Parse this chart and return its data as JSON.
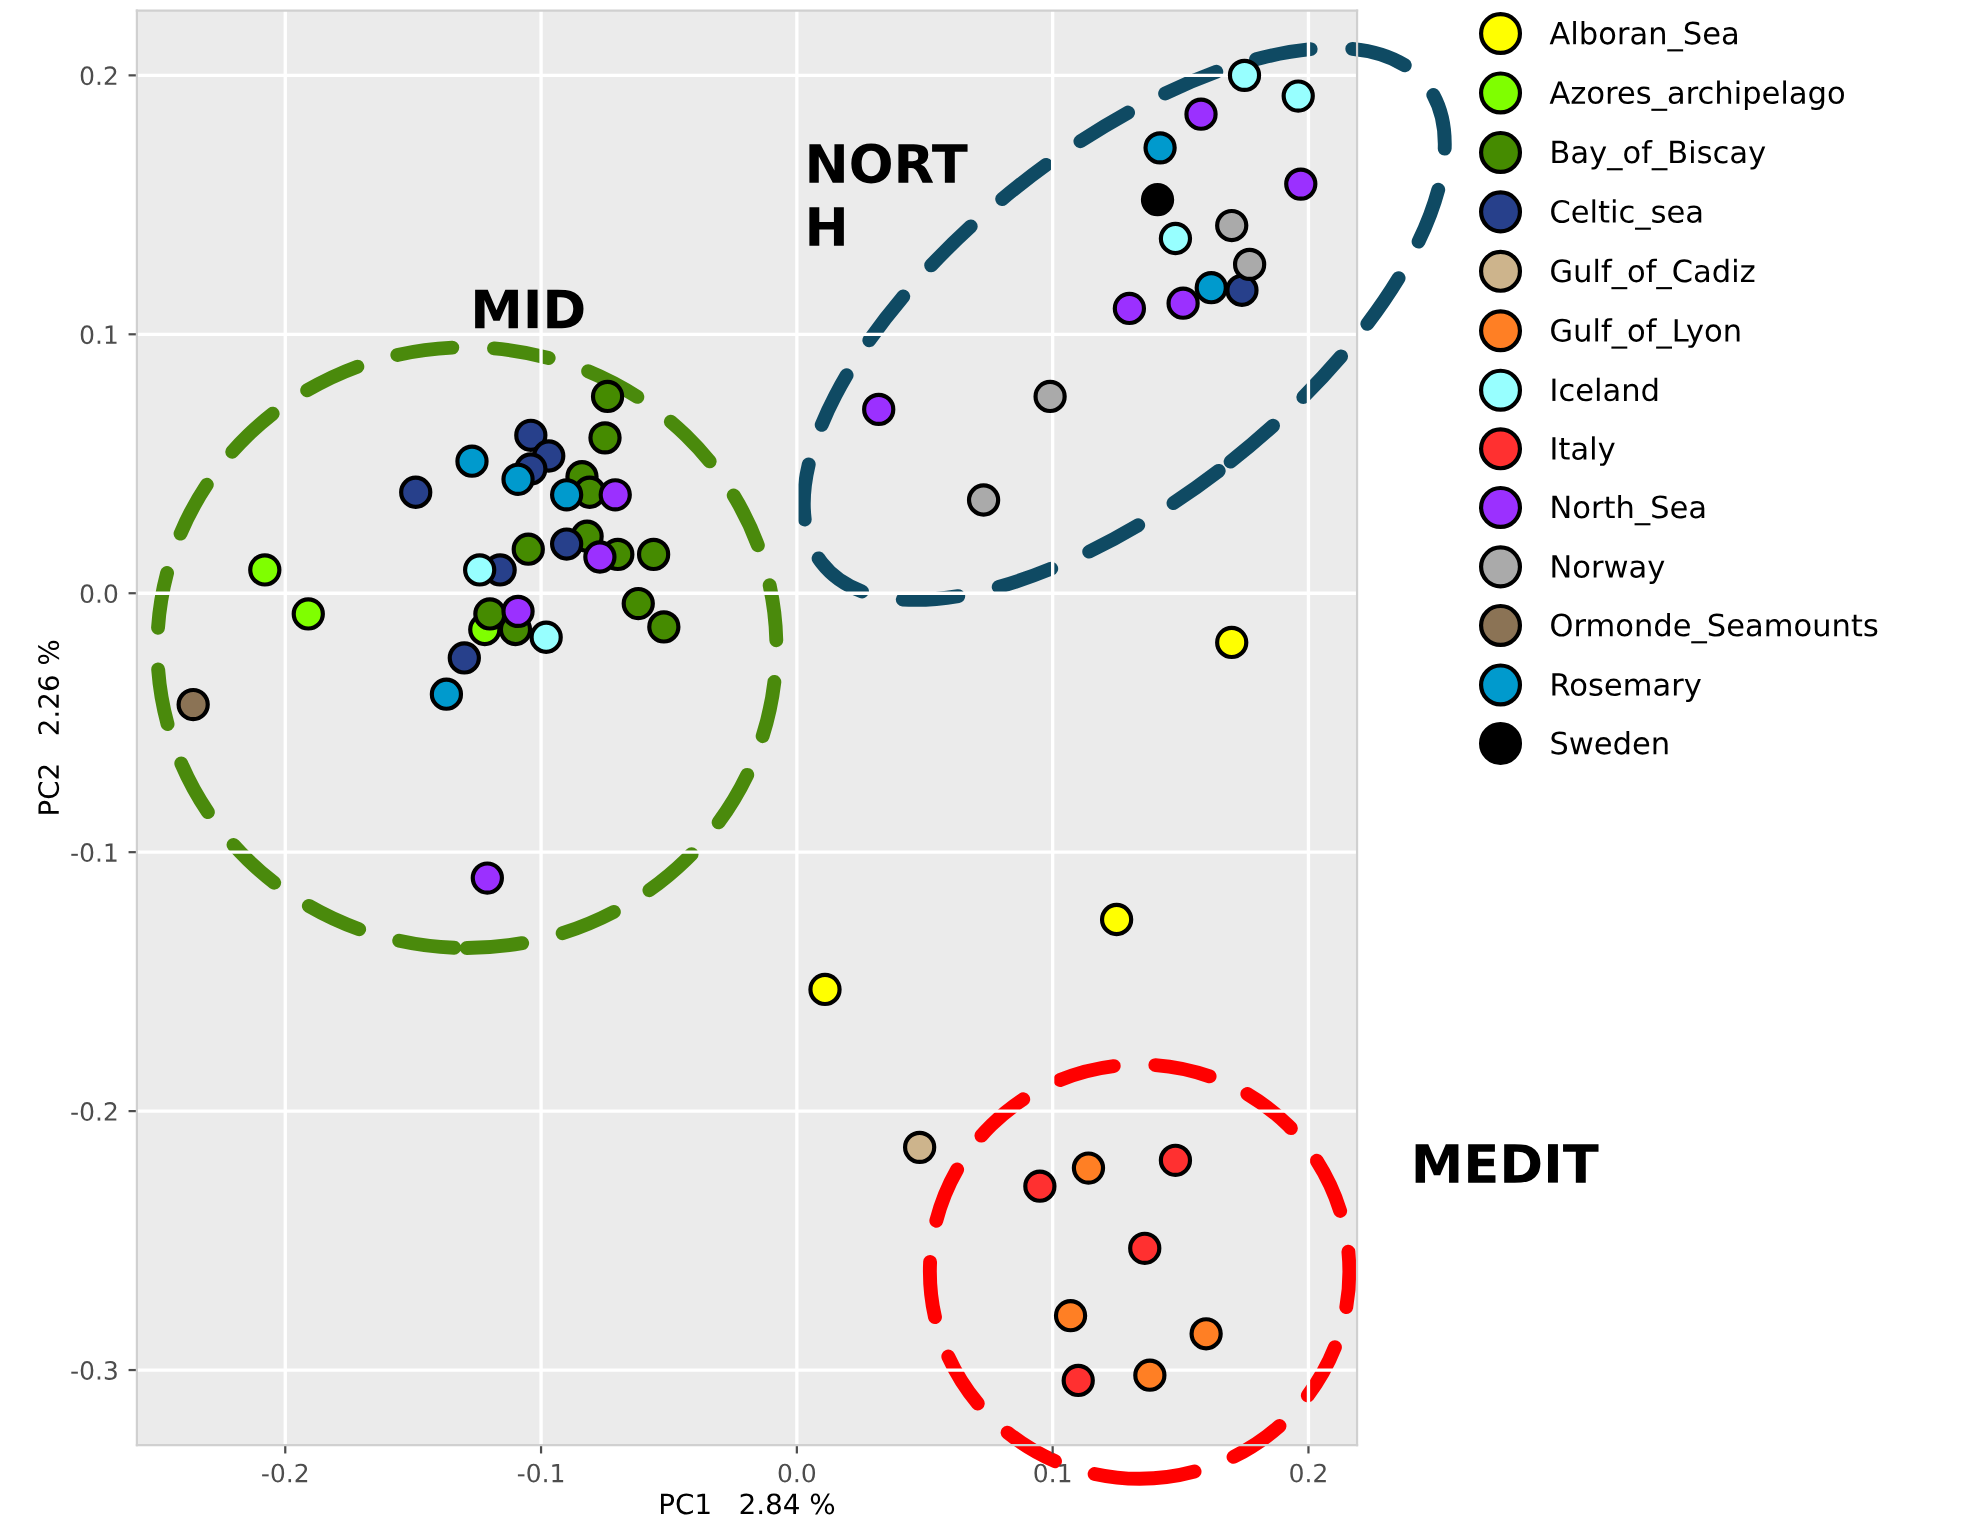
{
  "chart_data": {
    "type": "scatter",
    "xlabel": "PC1   2.84 %",
    "ylabel": "PC2   2.26 %",
    "xlim": [
      -0.258,
      0.219
    ],
    "ylim": [
      -0.329,
      0.225
    ],
    "xticks": [
      {
        "value": -0.2,
        "label": "-0.2"
      },
      {
        "value": -0.1,
        "label": "-0.1"
      },
      {
        "value": 0.0,
        "label": "0.0"
      },
      {
        "value": 0.1,
        "label": "0.1"
      },
      {
        "value": 0.2,
        "label": "0.2"
      }
    ],
    "yticks": [
      {
        "value": -0.3,
        "label": "-0.3"
      },
      {
        "value": -0.2,
        "label": "-0.2"
      },
      {
        "value": -0.1,
        "label": "-0.1"
      },
      {
        "value": 0.0,
        "label": "0.0"
      },
      {
        "value": 0.1,
        "label": "0.1"
      },
      {
        "value": 0.2,
        "label": "0.2"
      }
    ],
    "grid": true,
    "legend": "right",
    "marker": "circle",
    "annotations": [
      "MID",
      "NORT\nH",
      "MEDIT"
    ],
    "series": [
      {
        "name": "Alboran_Sea",
        "color": "#ffff00",
        "x": [
          0.17,
          0.011,
          0.125
        ],
        "values": [
          -0.019,
          -0.153,
          -0.126
        ]
      },
      {
        "name": "Azores_archipelago",
        "color": "#7fff00",
        "x": [
          -0.208,
          -0.191,
          -0.122
        ],
        "values": [
          0.009,
          -0.008,
          -0.014
        ]
      },
      {
        "name": "Bay_of_Biscay",
        "color": "#458b00",
        "x": [
          -0.074,
          -0.075,
          -0.084,
          -0.081,
          -0.082,
          -0.105,
          -0.07,
          -0.056,
          -0.12,
          -0.11,
          -0.062,
          -0.052
        ],
        "values": [
          0.076,
          0.06,
          0.045,
          0.039,
          0.022,
          0.017,
          0.015,
          0.015,
          -0.008,
          -0.014,
          -0.004,
          -0.013
        ]
      },
      {
        "name": "Celtic_sea",
        "color": "#27408b",
        "x": [
          -0.104,
          -0.097,
          -0.104,
          -0.149,
          -0.09,
          -0.116,
          -0.13,
          0.174
        ],
        "values": [
          0.061,
          0.053,
          0.048,
          0.039,
          0.019,
          0.009,
          -0.025,
          0.117
        ]
      },
      {
        "name": "Gulf_of_Cadiz",
        "color": "#cdb48c",
        "x": [
          0.048
        ],
        "values": [
          -0.214
        ]
      },
      {
        "name": "Gulf_of_Lyon",
        "color": "#ff7f24",
        "x": [
          0.114,
          0.107,
          0.16,
          0.138
        ],
        "values": [
          -0.222,
          -0.279,
          -0.286,
          -0.302
        ]
      },
      {
        "name": "Iceland",
        "color": "#97ffff",
        "x": [
          -0.124,
          -0.098,
          0.175,
          0.196,
          0.148
        ],
        "values": [
          0.009,
          -0.017,
          0.2,
          0.192,
          0.137
        ]
      },
      {
        "name": "Italy",
        "color": "#ff3030",
        "x": [
          0.095,
          0.148,
          0.136,
          0.11
        ],
        "values": [
          -0.229,
          -0.219,
          -0.253,
          -0.304
        ]
      },
      {
        "name": "North_Sea",
        "color": "#9b30ff",
        "x": [
          -0.071,
          -0.077,
          -0.109,
          -0.121,
          0.158,
          0.197,
          0.13,
          0.151,
          0.032
        ],
        "values": [
          0.038,
          0.014,
          -0.007,
          -0.11,
          0.185,
          0.158,
          0.11,
          0.112,
          0.071
        ]
      },
      {
        "name": "Norway",
        "color": "#aaaaaa",
        "x": [
          0.17,
          0.177,
          0.099,
          0.073
        ],
        "values": [
          0.142,
          0.127,
          0.076,
          0.036
        ]
      },
      {
        "name": "Ormonde_Seamounts",
        "color": "#8b7355",
        "x": [
          -0.236
        ],
        "values": [
          -0.043
        ]
      },
      {
        "name": "Rosemary",
        "color": "#009acd",
        "x": [
          -0.127,
          -0.109,
          -0.09,
          -0.137,
          0.142,
          0.162
        ],
        "values": [
          0.051,
          0.044,
          0.038,
          -0.039,
          0.172,
          0.118
        ]
      },
      {
        "name": "Sweden",
        "color": "#000000",
        "x": [
          0.141
        ],
        "values": [
          0.152
        ]
      }
    ]
  }
}
